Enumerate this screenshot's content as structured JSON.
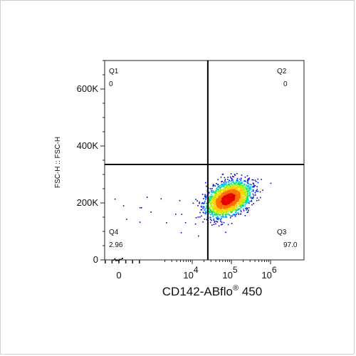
{
  "chart_data": {
    "type": "scatter",
    "plot": "flow-cytometry-pseudocolor-density",
    "xlabel": "CD142-ABflo",
    "xlabel_superscript": "®",
    "xlabel_suffix": " 450",
    "ylabel": "FSC-H :: FSC-H",
    "x_scale": "biexponential",
    "x_ticks": [
      {
        "value": 0,
        "base": "0",
        "exp": ""
      },
      {
        "value": 10000,
        "base": "10",
        "exp": "4"
      },
      {
        "value": 100000,
        "base": "10",
        "exp": "5"
      },
      {
        "value": 1000000,
        "base": "10",
        "exp": "6"
      }
    ],
    "y_scale": "linear",
    "ylim": [
      0,
      700000
    ],
    "y_ticks": [
      {
        "value": 0,
        "label": "0"
      },
      {
        "value": 200000,
        "label": "200K"
      },
      {
        "value": 400000,
        "label": "400K"
      },
      {
        "value": 600000,
        "label": "600K"
      }
    ],
    "gate": {
      "x": 25000,
      "y": 335000
    },
    "quadrants": [
      {
        "name": "Q1",
        "value": "0"
      },
      {
        "name": "Q2",
        "value": "0"
      },
      {
        "name": "Q3",
        "value": "97.0"
      },
      {
        "name": "Q4",
        "value": "2.96"
      }
    ],
    "population": {
      "center_x": 80000,
      "center_y": 215000,
      "spread_log_x": 0.28,
      "spread_y": 33000,
      "events": 2600
    },
    "colormap": [
      "#0000c8",
      "#0050ff",
      "#00c8ff",
      "#00e070",
      "#b4f000",
      "#ffd200",
      "#ff6e00",
      "#e60000"
    ]
  }
}
